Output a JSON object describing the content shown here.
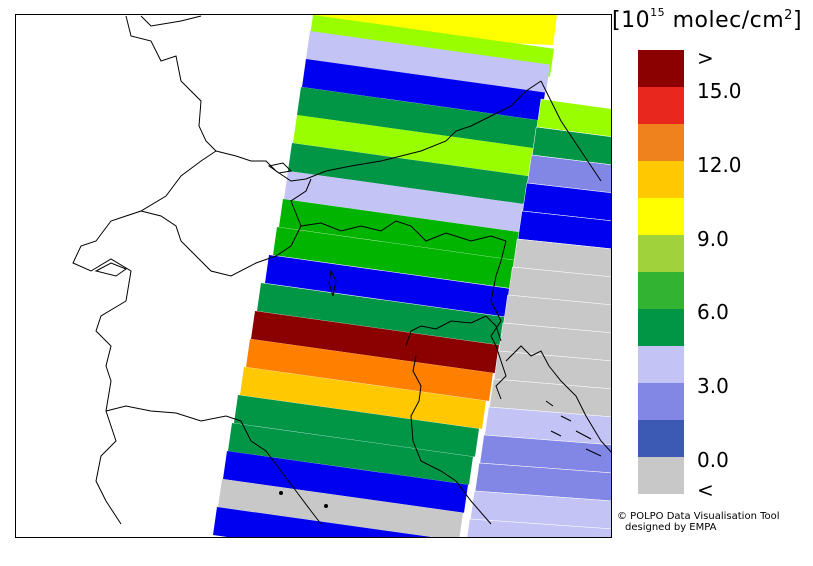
{
  "legend": {
    "unit_base": "10",
    "unit_exp": "15",
    "unit_rest": " molec/cm",
    "unit_sq": "2",
    "bins": [
      {
        "color": "#8B0000"
      },
      {
        "color": "#E8281E"
      },
      {
        "color": "#F0821E"
      },
      {
        "color": "#FFC800"
      },
      {
        "color": "#FFFF00"
      },
      {
        "color": "#A0D23C"
      },
      {
        "color": "#32B432"
      },
      {
        "color": "#009646"
      },
      {
        "color": "#C3C3F5"
      },
      {
        "color": "#8287E6"
      },
      {
        "color": "#3C5AB4"
      },
      {
        "color": "#C8C8C8"
      }
    ],
    "labels": {
      "over": ">",
      "v15": "15.0",
      "v12": "12.0",
      "v9": "9.0",
      "v6": "6.0",
      "v3": "3.0",
      "v0": "0.0",
      "under": "<"
    }
  },
  "credit": {
    "line1": "© POLPO Data Visualisation Tool",
    "line2": "designed by EMPA"
  },
  "swath_colors": {
    "darkred": "#8B0000",
    "orange": "#FF8000",
    "amber": "#FFC800",
    "yellow": "#FFFF00",
    "lime": "#99FF00",
    "green": "#00B400",
    "darkgreen": "#009646",
    "blue": "#0000F0",
    "lavender": "#C3C3F5",
    "periwinkle": "#8287E6",
    "gray": "#C8C8C8"
  }
}
